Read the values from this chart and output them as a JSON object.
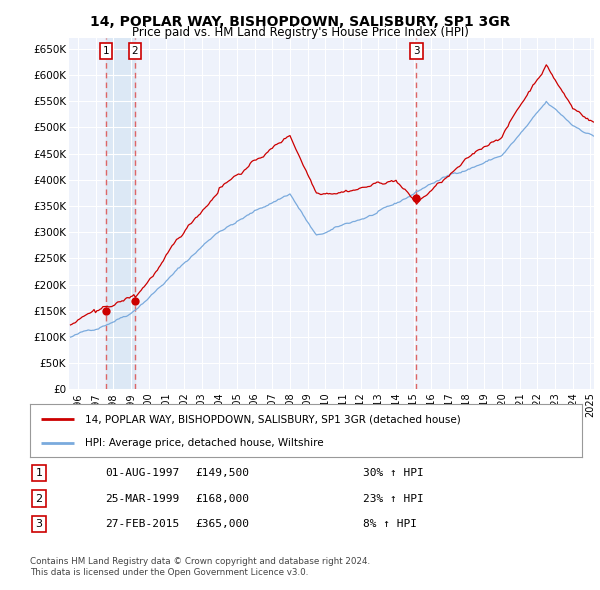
{
  "title": "14, POPLAR WAY, BISHOPDOWN, SALISBURY, SP1 3GR",
  "subtitle": "Price paid vs. HM Land Registry's House Price Index (HPI)",
  "background_color": "#eef2fb",
  "grid_color": "#ffffff",
  "sale_color": "#cc0000",
  "hpi_color": "#7aaadd",
  "vline_color": "#dd6666",
  "shade_color": "#dce8f5",
  "transactions": [
    {
      "num": 1,
      "date_label": "01-AUG-1997",
      "price": 149500,
      "hpi_pct": "30%",
      "year": 1997.583
    },
    {
      "num": 2,
      "date_label": "25-MAR-1999",
      "price": 168000,
      "hpi_pct": "23%",
      "year": 1999.23
    },
    {
      "num": 3,
      "date_label": "27-FEB-2015",
      "price": 365000,
      "hpi_pct": "8%",
      "year": 2015.15
    }
  ],
  "legend_sale_label": "14, POPLAR WAY, BISHOPDOWN, SALISBURY, SP1 3GR (detached house)",
  "legend_hpi_label": "HPI: Average price, detached house, Wiltshire",
  "footer1": "Contains HM Land Registry data © Crown copyright and database right 2024.",
  "footer2": "This data is licensed under the Open Government Licence v3.0.",
  "ylim": [
    0,
    670000
  ],
  "yticks": [
    0,
    50000,
    100000,
    150000,
    200000,
    250000,
    300000,
    350000,
    400000,
    450000,
    500000,
    550000,
    600000,
    650000
  ],
  "ytick_labels": [
    "£0",
    "£50K",
    "£100K",
    "£150K",
    "£200K",
    "£250K",
    "£300K",
    "£350K",
    "£400K",
    "£450K",
    "£500K",
    "£550K",
    "£600K",
    "£650K"
  ],
  "xlim": [
    1995.5,
    2025.2
  ],
  "xtick_years": [
    1996,
    1997,
    1998,
    1999,
    2000,
    2001,
    2002,
    2003,
    2004,
    2005,
    2006,
    2007,
    2008,
    2009,
    2010,
    2011,
    2012,
    2013,
    2014,
    2015,
    2016,
    2017,
    2018,
    2019,
    2020,
    2021,
    2022,
    2023,
    2024,
    2025
  ]
}
